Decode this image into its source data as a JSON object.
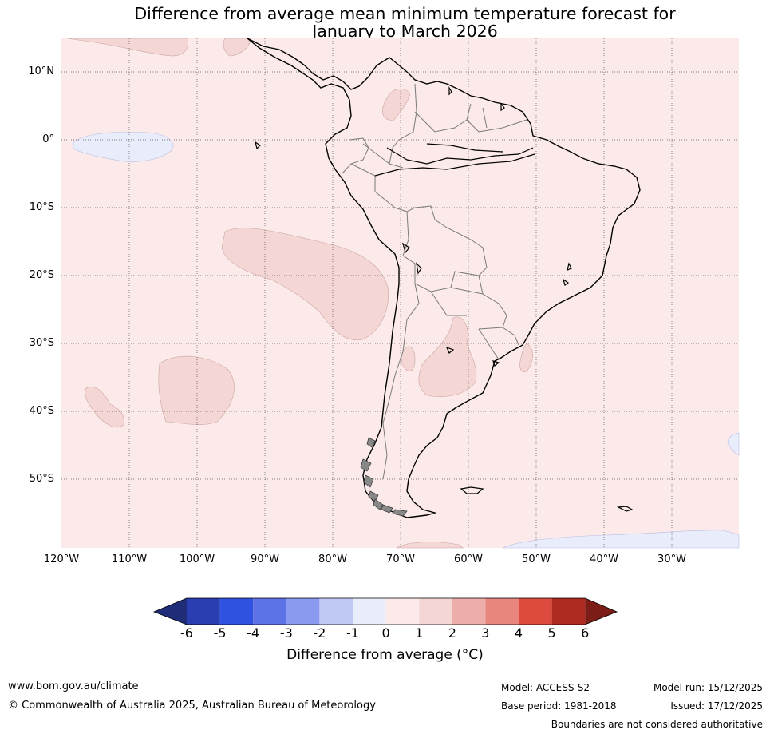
{
  "title": {
    "line1": "Difference from average mean minimum temperature forecast for",
    "line2": "January to March 2026"
  },
  "map": {
    "region": "South America",
    "latitude_labels": [
      "10°N",
      "0°",
      "10°S",
      "20°S",
      "30°S",
      "40°S",
      "50°S"
    ],
    "longitude_labels": [
      "120°W",
      "110°W",
      "100°W",
      "90°W",
      "80°W",
      "70°W",
      "60°W",
      "50°W",
      "40°W",
      "30°W"
    ],
    "background_color": "#fbeae9",
    "warm_anomaly_color": "#f4d7d5",
    "cool_anomaly_color": "#e9ecfb"
  },
  "legend": {
    "ticks": [
      "-6",
      "-5",
      "-4",
      "-3",
      "-2",
      "-1",
      "0",
      "1",
      "2",
      "3",
      "4",
      "5",
      "6"
    ],
    "colors": [
      "#1f2c78",
      "#2a3eb1",
      "#3052e0",
      "#5c72e6",
      "#8a9af0",
      "#c0c8f5",
      "#e9ecfb",
      "#fbeae9",
      "#f4d7d5",
      "#edaeaa",
      "#e8857f",
      "#dc4b3e",
      "#ad2a20",
      "#7d1d17"
    ],
    "label": "Difference from average (°C)"
  },
  "footer": {
    "url": "www.bom.gov.au/climate",
    "copyright": "© Commonwealth of Australia 2025, Australian Bureau of Meteorology",
    "model": "Model: ACCESS-S2",
    "base_period": "Base period: 1981-2018",
    "model_run": "Model run: 15/12/2025",
    "issued": "Issued: 17/12/2025",
    "disclaimer": "Boundaries are not considered authoritative"
  }
}
